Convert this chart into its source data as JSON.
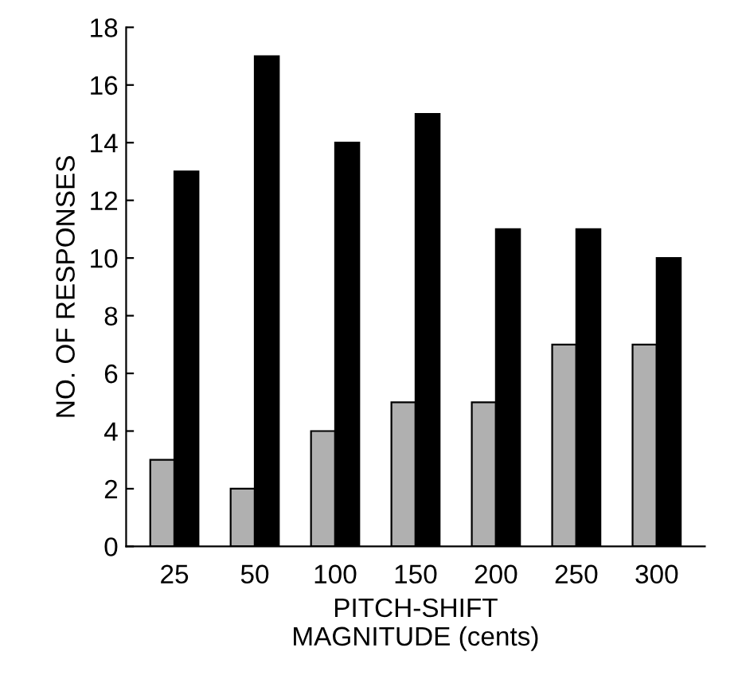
{
  "chart_data": {
    "type": "bar",
    "xlabel": "PITCH-SHIFT\nMAGNITUDE (cents)",
    "ylabel": "NO. OF RESPONSES",
    "categories": [
      "25",
      "50",
      "100",
      "150",
      "200",
      "250",
      "300"
    ],
    "series": [
      {
        "color": "#b0b0b0",
        "values": [
          3,
          2,
          4,
          5,
          5,
          7,
          7
        ]
      },
      {
        "color": "#000000",
        "values": [
          13,
          17,
          14,
          15,
          11,
          11,
          10
        ]
      }
    ],
    "ylim": [
      0,
      18
    ],
    "yticks": [
      0,
      2,
      4,
      6,
      8,
      10,
      12,
      14,
      16,
      18
    ],
    "grid": false,
    "legend": false
  }
}
